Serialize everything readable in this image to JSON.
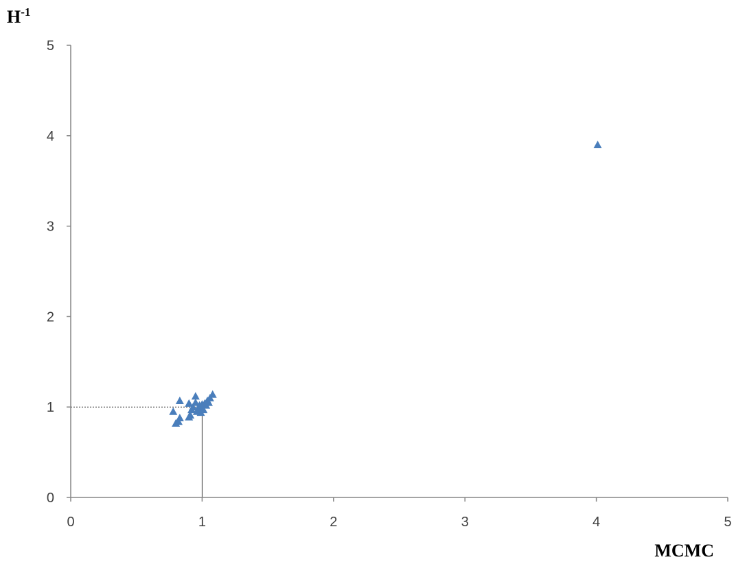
{
  "chart_data": {
    "type": "scatter",
    "title": "",
    "xlabel": "MCMC",
    "ylabel": {
      "base": "H",
      "superscript": "-1"
    },
    "xlim": [
      0,
      5
    ],
    "ylim": [
      0,
      5
    ],
    "xticks": [
      "0",
      "1",
      "2",
      "3",
      "4",
      "5"
    ],
    "yticks": [
      "0",
      "1",
      "2",
      "3",
      "4",
      "5"
    ],
    "grid": false,
    "legend": "none",
    "marker": "triangle",
    "reference_lines": [
      {
        "orientation": "horizontal",
        "value": 1,
        "from": 0,
        "to": 1,
        "style": "dotted"
      },
      {
        "orientation": "vertical",
        "value": 1,
        "from": 0,
        "to": 1,
        "style": "solid"
      }
    ],
    "series": [
      {
        "color": "#4a7ebb",
        "points": [
          {
            "x": 4.01,
            "y": 3.9
          },
          {
            "x": 0.83,
            "y": 1.07
          },
          {
            "x": 0.95,
            "y": 1.12
          },
          {
            "x": 1.08,
            "y": 1.14
          },
          {
            "x": 0.78,
            "y": 0.95
          },
          {
            "x": 0.8,
            "y": 0.82
          },
          {
            "x": 0.82,
            "y": 0.84
          },
          {
            "x": 0.83,
            "y": 0.88
          },
          {
            "x": 0.9,
            "y": 0.89
          },
          {
            "x": 0.91,
            "y": 0.91
          },
          {
            "x": 0.9,
            "y": 1.04
          },
          {
            "x": 0.92,
            "y": 0.97
          },
          {
            "x": 0.93,
            "y": 1.0
          },
          {
            "x": 0.95,
            "y": 1.05
          },
          {
            "x": 0.96,
            "y": 0.95
          },
          {
            "x": 0.97,
            "y": 0.98
          },
          {
            "x": 0.98,
            "y": 1.02
          },
          {
            "x": 0.99,
            "y": 0.94
          },
          {
            "x": 1.0,
            "y": 0.99
          },
          {
            "x": 1.0,
            "y": 1.03
          },
          {
            "x": 1.01,
            "y": 0.97
          },
          {
            "x": 1.02,
            "y": 1.04
          },
          {
            "x": 1.03,
            "y": 1.02
          },
          {
            "x": 1.04,
            "y": 1.07
          },
          {
            "x": 1.05,
            "y": 1.05
          },
          {
            "x": 1.06,
            "y": 1.1
          }
        ]
      }
    ],
    "colors": {
      "axis": "#868686",
      "reference_line": "#333333"
    }
  }
}
